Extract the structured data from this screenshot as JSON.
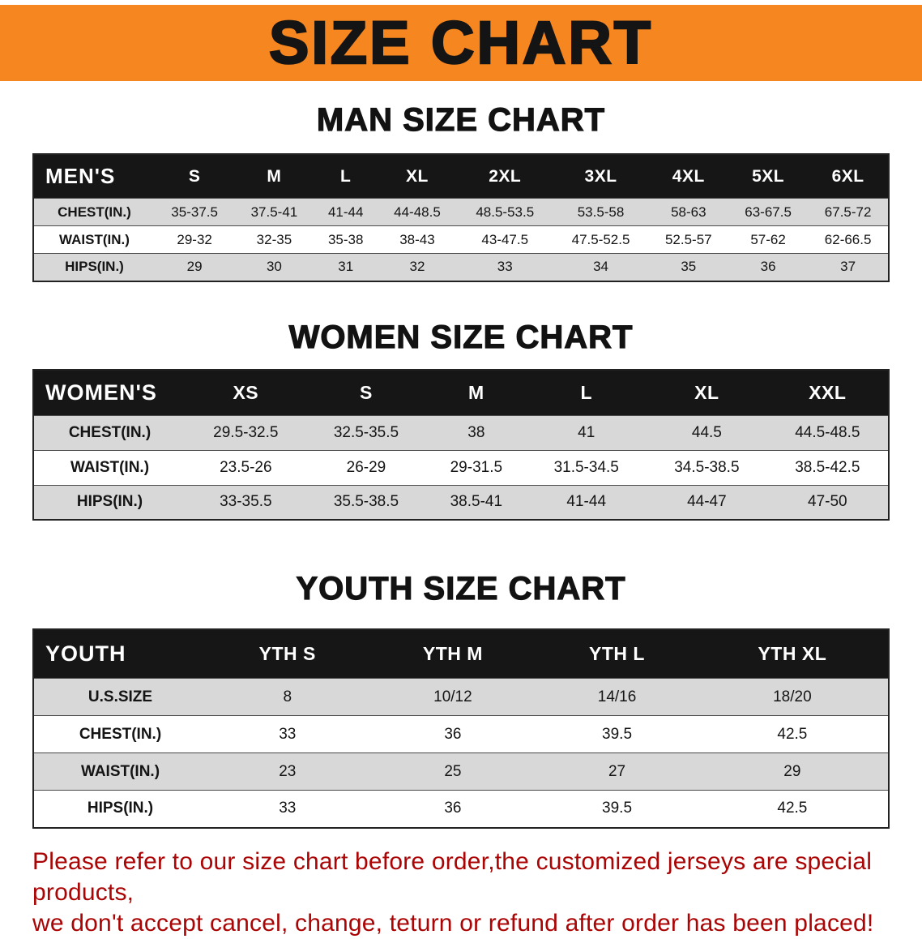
{
  "banner": {
    "title": "SIZE CHART",
    "background_color": "#F6861F",
    "text_color": "#141414"
  },
  "sections": [
    {
      "heading": "MAN SIZE CHART",
      "table": {
        "header": [
          "MEN'S",
          "S",
          "M",
          "L",
          "XL",
          "2XL",
          "3XL",
          "4XL",
          "5XL",
          "6XL"
        ],
        "rows": [
          [
            "CHEST(IN.)",
            "35-37.5",
            "37.5-41",
            "41-44",
            "44-48.5",
            "48.5-53.5",
            "53.5-58",
            "58-63",
            "63-67.5",
            "67.5-72"
          ],
          [
            "WAIST(IN.)",
            "29-32",
            "32-35",
            "35-38",
            "38-43",
            "43-47.5",
            "47.5-52.5",
            "52.5-57",
            "57-62",
            "62-66.5"
          ],
          [
            "HIPS(IN.)",
            "29",
            "30",
            "31",
            "32",
            "33",
            "34",
            "35",
            "36",
            "37"
          ]
        ]
      }
    },
    {
      "heading": "WOMEN SIZE CHART",
      "table": {
        "header": [
          "WOMEN'S",
          "XS",
          "S",
          "M",
          "L",
          "XL",
          "XXL"
        ],
        "rows": [
          [
            "CHEST(IN.)",
            "29.5-32.5",
            "32.5-35.5",
            "38",
            "41",
            "44.5",
            "44.5-48.5"
          ],
          [
            "WAIST(IN.)",
            "23.5-26",
            "26-29",
            "29-31.5",
            "31.5-34.5",
            "34.5-38.5",
            "38.5-42.5"
          ],
          [
            "HIPS(IN.)",
            "33-35.5",
            "35.5-38.5",
            "38.5-41",
            "41-44",
            "44-47",
            "47-50"
          ]
        ]
      }
    },
    {
      "heading": "YOUTH SIZE CHART",
      "table": {
        "header": [
          "YOUTH",
          "YTH S",
          "YTH M",
          "YTH L",
          "YTH XL"
        ],
        "rows": [
          [
            "U.S.SIZE",
            "8",
            "10/12",
            "14/16",
            "18/20"
          ],
          [
            "CHEST(IN.)",
            "33",
            "36",
            "39.5",
            "42.5"
          ],
          [
            "WAIST(IN.)",
            "23",
            "25",
            "27",
            "29"
          ],
          [
            "HIPS(IN.)",
            "33",
            "36",
            "39.5",
            "42.5"
          ]
        ]
      }
    }
  ],
  "footer": {
    "text_color": "#AB0404",
    "lines": [
      "Please refer to our size chart before order,the customized jerseys are special products,",
      "we don't accept cancel, change, teturn or refund after order has been placed!"
    ]
  }
}
